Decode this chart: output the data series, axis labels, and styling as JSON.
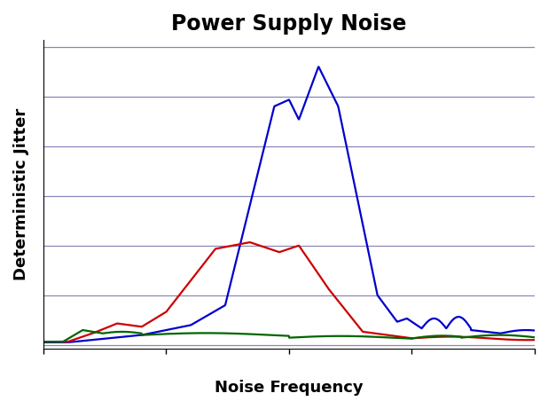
{
  "title": "Power Supply Noise",
  "xlabel": "Noise Frequency",
  "ylabel": "Deterministic Jitter",
  "title_fontsize": 17,
  "label_fontsize": 13,
  "background_color": "#ffffff",
  "grid_color": "#8888bb",
  "blue_color": "#0000cc",
  "red_color": "#cc0000",
  "green_color": "#006600",
  "line_width": 1.6,
  "ylim": [
    0,
    1.0
  ],
  "xlim": [
    0,
    1.0
  ]
}
